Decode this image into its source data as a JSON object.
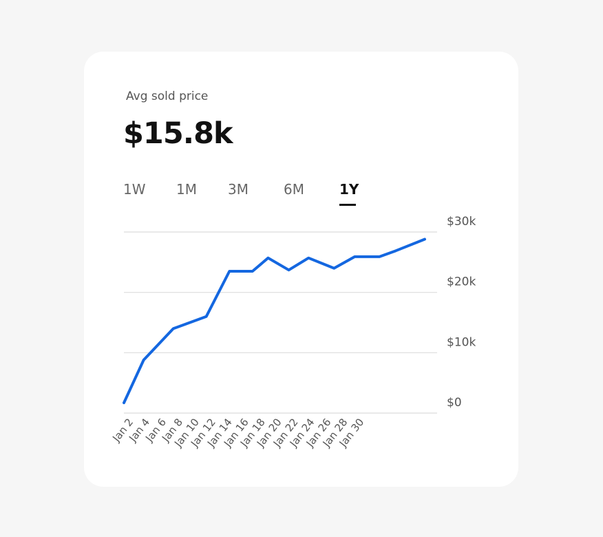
{
  "metric": {
    "label": "Avg sold price",
    "value": "$15.8k"
  },
  "tabs": [
    {
      "label": "1W",
      "active": false
    },
    {
      "label": "1M",
      "active": false
    },
    {
      "label": "3M",
      "active": false
    },
    {
      "label": "6M",
      "active": false
    },
    {
      "label": "1Y",
      "active": true
    }
  ],
  "colors": {
    "line": "#1467e0",
    "card": "#ffffff",
    "background": "#f6f6f6"
  },
  "chart_data": {
    "type": "line",
    "title": "",
    "xlabel": "",
    "ylabel": "",
    "ylim": [
      0,
      30000
    ],
    "y_ticks": [
      "$0",
      "$10k",
      "$20k",
      "$30k"
    ],
    "y_tick_values": [
      0,
      10000,
      20000,
      30000
    ],
    "y_axis_position": "right",
    "grid": true,
    "x_ticks": [
      "Jan 2",
      "Jan 4",
      "Jan 6",
      "Jan 8",
      "Jan 10",
      "Jan 12",
      "Jan 14",
      "Jan 16",
      "Jan 18",
      "Jan 20",
      "Jan 22",
      "Jan 24",
      "Jan 26",
      "Jan 28",
      "Jan 30"
    ],
    "series": [
      {
        "x": [
          2,
          4.4,
          8,
          12,
          14.8,
          17.6,
          19.5,
          22,
          24.4,
          27.5,
          30,
          31.5,
          33,
          35,
          38.5
        ],
        "y": [
          1700,
          8800,
          14000,
          16000,
          23500,
          23500,
          25700,
          23700,
          25700,
          24000,
          25900,
          25900,
          25900,
          26900,
          28800
        ]
      }
    ]
  }
}
